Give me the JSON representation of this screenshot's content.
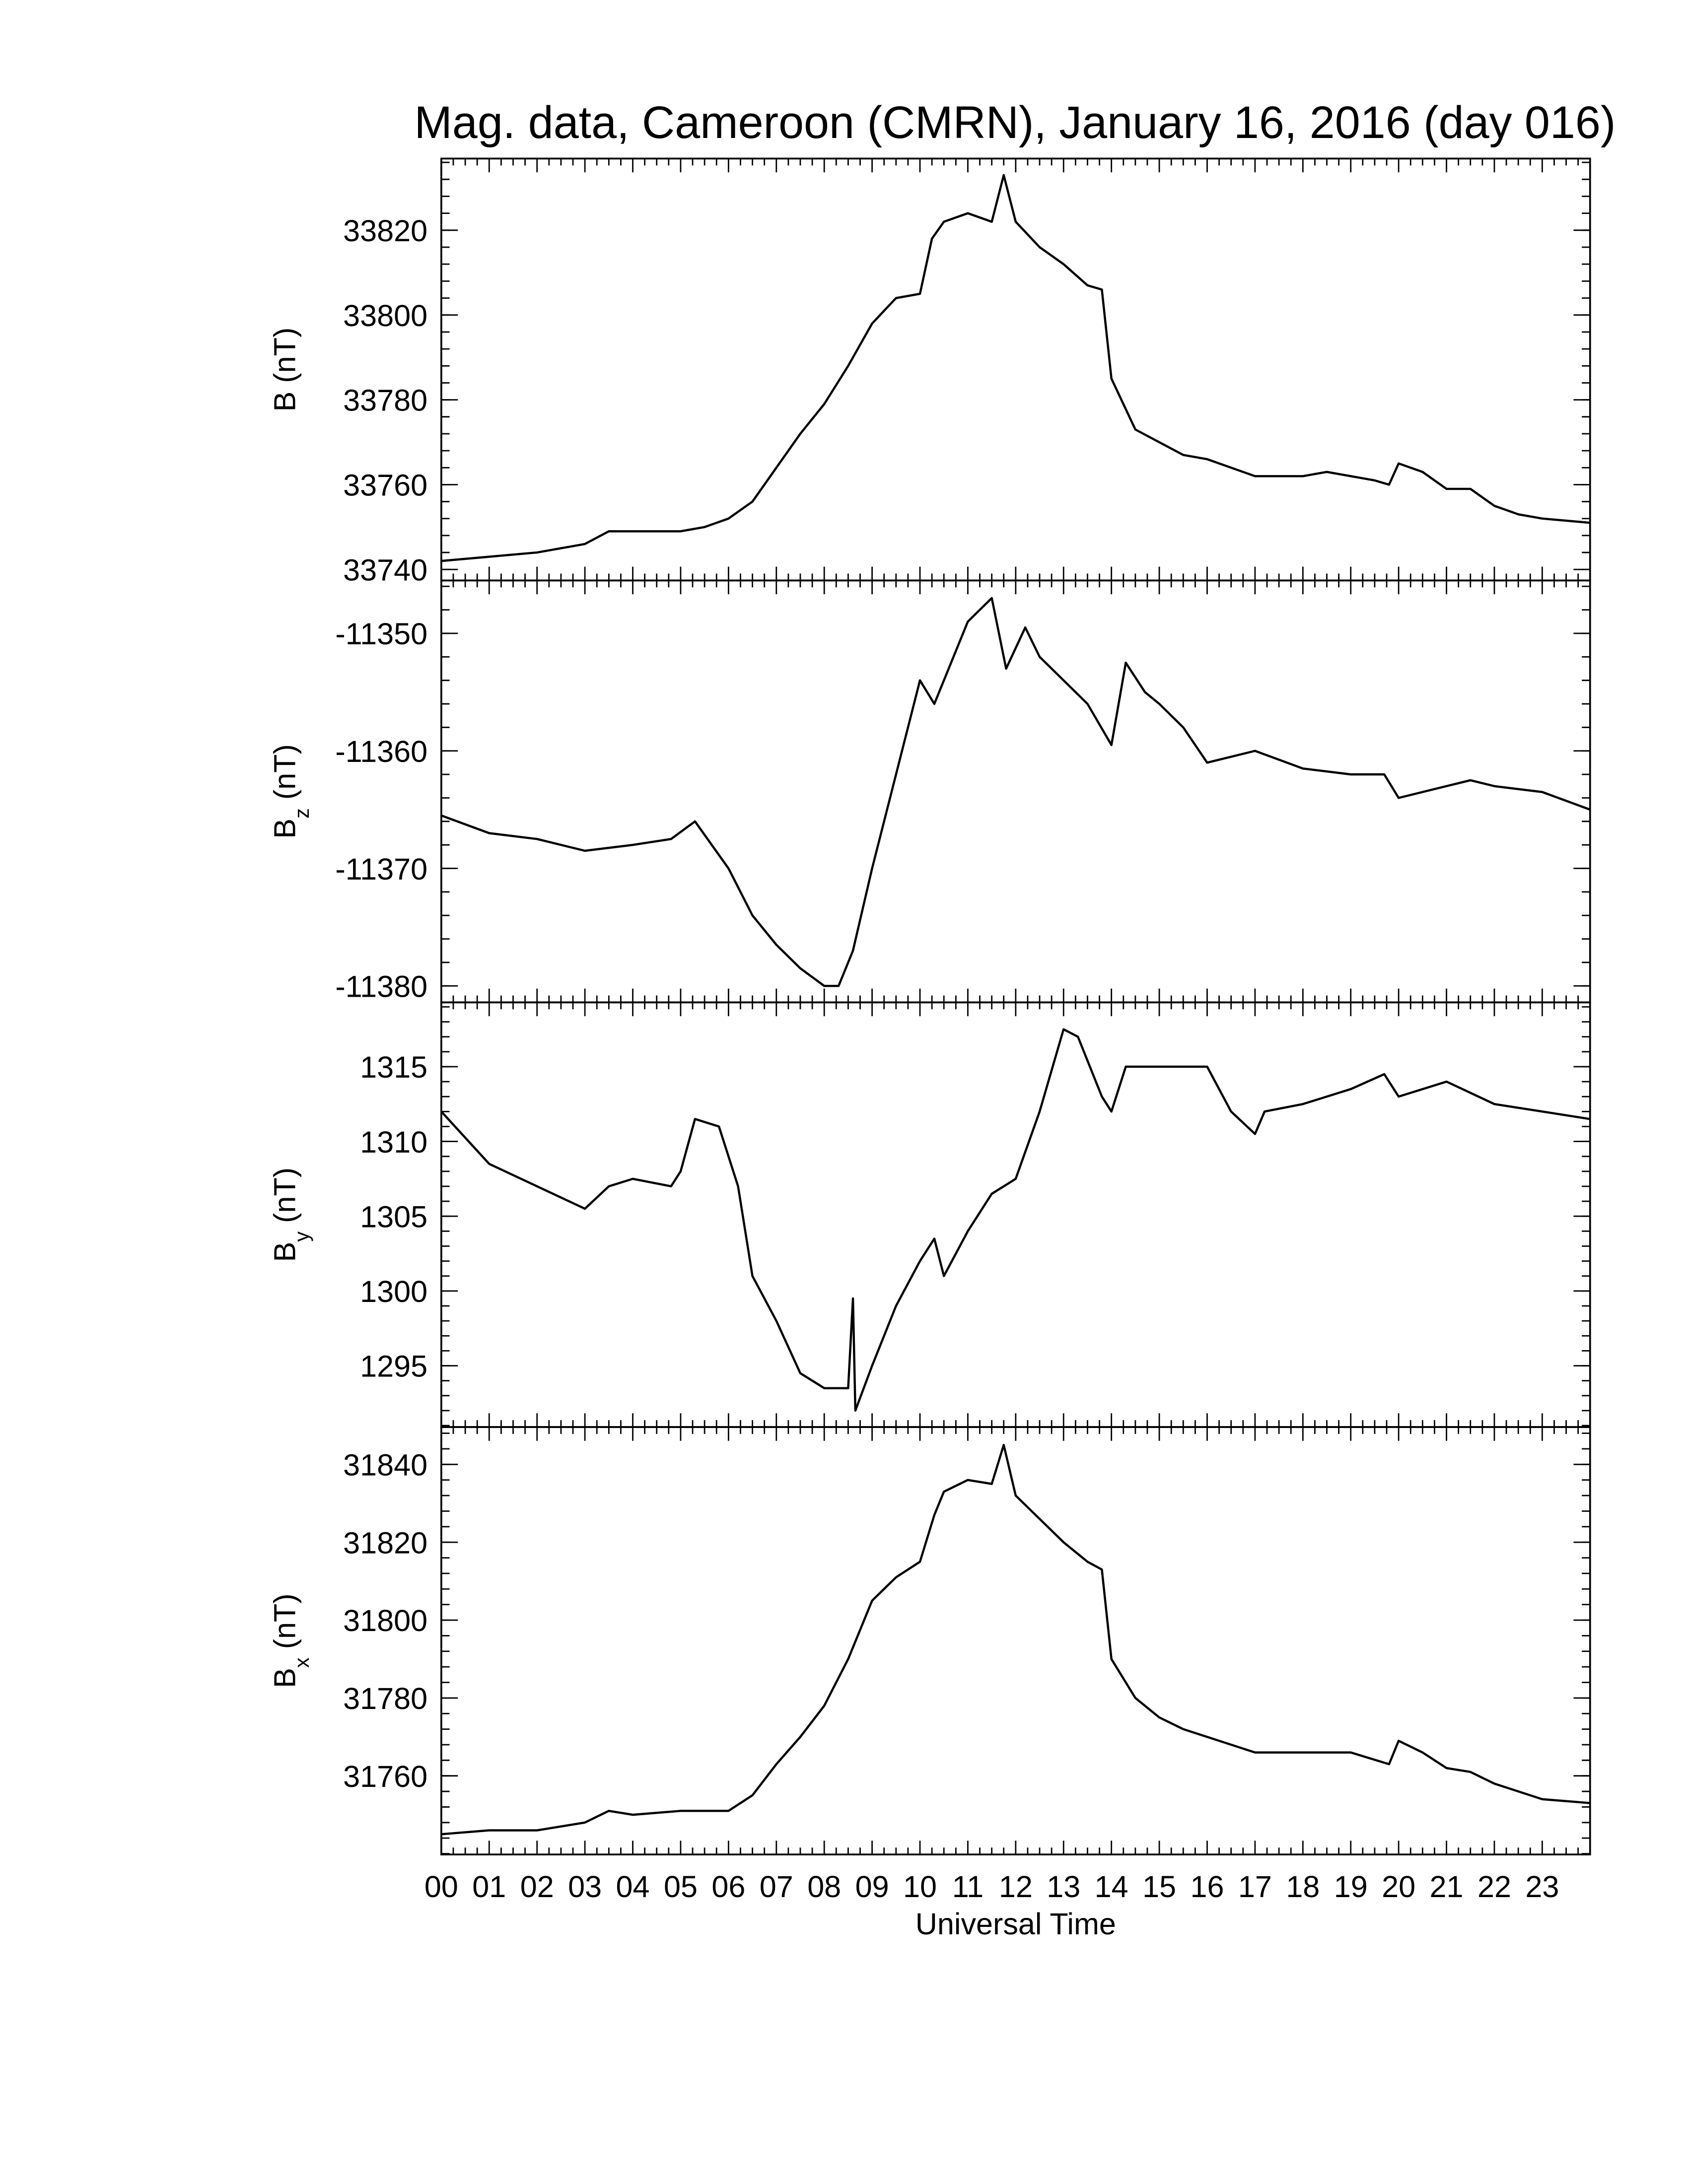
{
  "chart_data": [
    {
      "type": "line",
      "title": "Mag. data, Cameroon (CMRN), January 16, 2016 (day 016)",
      "ylabel": {
        "main": "B",
        "unit": " (nT)"
      },
      "ylim": [
        33737.4,
        33836.9
      ],
      "yticks": [
        33740,
        33760,
        33780,
        33800,
        33820
      ],
      "color": "#000000",
      "x": [
        0,
        1,
        2,
        3,
        3.5,
        4,
        5,
        5.5,
        6,
        6.5,
        7,
        7.5,
        8,
        8.5,
        9,
        9.5,
        10,
        10.25,
        10.5,
        11,
        11.5,
        11.75,
        12,
        12.5,
        13,
        13.5,
        13.8,
        14,
        14.5,
        15,
        15.5,
        16,
        16.5,
        17,
        18,
        18.5,
        19,
        19.5,
        19.8,
        20,
        20.5,
        21,
        21.5,
        22,
        22.5,
        23,
        24
      ],
      "values": [
        33742,
        33743,
        33744,
        33746,
        33749,
        33749,
        33749,
        33750,
        33752,
        33756,
        33764,
        33772,
        33779,
        33788,
        33798,
        33804,
        33805,
        33818,
        33822,
        33824,
        33822,
        33833,
        33822,
        33816,
        33812,
        33807,
        33806,
        33785,
        33773,
        33770,
        33767,
        33766,
        33764,
        33762,
        33762,
        33763,
        33762,
        33761,
        33760,
        33765,
        33763,
        33759,
        33759,
        33755,
        33753,
        33752,
        33751
      ]
    },
    {
      "type": "line",
      "ylabel": {
        "main": "B",
        "sub": "z",
        "unit": " (nT)"
      },
      "ylim": [
        -11381.4,
        -11345.5
      ],
      "yticks": [
        -11380,
        -11370,
        -11360,
        -11350
      ],
      "color": "#000000",
      "x": [
        0,
        1,
        2,
        3,
        4,
        4.8,
        5.3,
        6,
        6.5,
        7,
        7.5,
        8,
        8.3,
        8.6,
        9,
        9.5,
        10,
        10.3,
        10.6,
        11,
        11.5,
        11.8,
        12.2,
        12.5,
        13,
        13.5,
        14,
        14.3,
        14.7,
        15,
        15.5,
        16,
        17,
        18,
        19,
        19.7,
        20,
        21,
        21.5,
        22,
        23,
        24
      ],
      "values": [
        -11365.5,
        -11367,
        -11367.5,
        -11368.5,
        -11368,
        -11367.5,
        -11366,
        -11370,
        -11374,
        -11376.5,
        -11378.5,
        -11380,
        -11380,
        -11377,
        -11370,
        -11362,
        -11354,
        -11356,
        -11353,
        -11349,
        -11347,
        -11353,
        -11349.5,
        -11352,
        -11354,
        -11356,
        -11359.5,
        -11352.5,
        -11355,
        -11356,
        -11358,
        -11361,
        -11360,
        -11361.5,
        -11362,
        -11362,
        -11364,
        -11363,
        -11362.5,
        -11363,
        -11363.5,
        -11365
      ]
    },
    {
      "type": "line",
      "ylabel": {
        "main": "B",
        "sub": "y",
        "unit": " (nT)"
      },
      "ylim": [
        1290.9,
        1319.3
      ],
      "yticks": [
        1295,
        1300,
        1305,
        1310,
        1315
      ],
      "color": "#000000",
      "x": [
        0,
        1,
        2,
        3,
        3.5,
        4,
        4.8,
        5,
        5.3,
        5.8,
        6.2,
        6.5,
        7,
        7.5,
        8,
        8.5,
        8.6,
        8.65,
        9,
        9.5,
        10,
        10.3,
        10.5,
        11,
        11.5,
        12,
        12.5,
        13,
        13.3,
        13.8,
        14,
        14.3,
        15,
        16,
        16.5,
        17,
        17.2,
        18,
        19,
        19.7,
        20,
        21,
        22,
        23,
        24
      ],
      "values": [
        1312,
        1308.5,
        1307,
        1305.5,
        1307,
        1307.5,
        1307,
        1308,
        1311.5,
        1311,
        1307,
        1301,
        1298,
        1294.5,
        1293.5,
        1293.5,
        1299.5,
        1292,
        1295,
        1299,
        1302,
        1303.5,
        1301,
        1304,
        1306.5,
        1307.5,
        1312,
        1317.5,
        1317,
        1313,
        1312,
        1315,
        1315,
        1315,
        1312,
        1310.5,
        1312,
        1312.5,
        1313.5,
        1314.5,
        1313,
        1314,
        1312.5,
        1312,
        1311.5
      ]
    },
    {
      "type": "line",
      "ylabel": {
        "main": "B",
        "sub": "x",
        "unit": " (nT)"
      },
      "xlabel": "Universal Time",
      "ylim": [
        31739.8,
        31849.6
      ],
      "yticks": [
        31760,
        31780,
        31800,
        31820,
        31840
      ],
      "color": "#000000",
      "xlim": [
        0,
        24
      ],
      "xticks": [
        {
          "value": 0,
          "label": "00"
        },
        {
          "value": 1,
          "label": "01"
        },
        {
          "value": 2,
          "label": "02"
        },
        {
          "value": 3,
          "label": "03"
        },
        {
          "value": 4,
          "label": "04"
        },
        {
          "value": 5,
          "label": "05"
        },
        {
          "value": 6,
          "label": "06"
        },
        {
          "value": 7,
          "label": "07"
        },
        {
          "value": 8,
          "label": "08"
        },
        {
          "value": 9,
          "label": "09"
        },
        {
          "value": 10,
          "label": "10"
        },
        {
          "value": 11,
          "label": "11"
        },
        {
          "value": 12,
          "label": "12"
        },
        {
          "value": 13,
          "label": "13"
        },
        {
          "value": 14,
          "label": "14"
        },
        {
          "value": 15,
          "label": "15"
        },
        {
          "value": 16,
          "label": "16"
        },
        {
          "value": 17,
          "label": "17"
        },
        {
          "value": 18,
          "label": "18"
        },
        {
          "value": 19,
          "label": "19"
        },
        {
          "value": 20,
          "label": "20"
        },
        {
          "value": 21,
          "label": "21"
        },
        {
          "value": 22,
          "label": "22"
        },
        {
          "value": 23,
          "label": "23"
        }
      ],
      "x": [
        0,
        1,
        2,
        3,
        3.5,
        4,
        5,
        6,
        6.5,
        7,
        7.5,
        8,
        8.5,
        9,
        9.5,
        10,
        10.3,
        10.5,
        11,
        11.5,
        11.75,
        12,
        12.5,
        13,
        13.5,
        13.8,
        14,
        14.5,
        15,
        15.5,
        16,
        16.5,
        17,
        18,
        19,
        19.8,
        20,
        20.5,
        21,
        21.5,
        22,
        22.5,
        23,
        24
      ],
      "values": [
        31745,
        31746,
        31746,
        31748,
        31751,
        31750,
        31751,
        31751,
        31755,
        31763,
        31770,
        31778,
        31790,
        31805,
        31811,
        31815,
        31827,
        31833,
        31836,
        31835,
        31845,
        31832,
        31826,
        31820,
        31815,
        31813,
        31790,
        31780,
        31775,
        31772,
        31770,
        31768,
        31766,
        31766,
        31766,
        31763,
        31769,
        31766,
        31762,
        31761,
        31758,
        31756,
        31754,
        31753
      ]
    }
  ]
}
